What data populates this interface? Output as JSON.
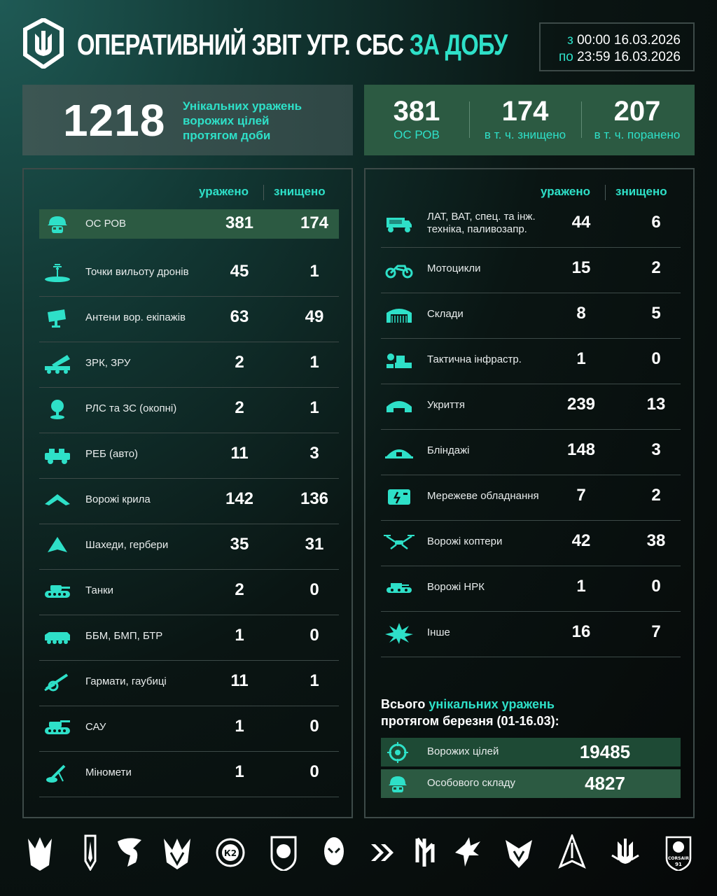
{
  "header": {
    "title_main": "ОПЕРАТИВНИЙ ЗВІТ УГР. СБС ",
    "title_accent": "ЗА ДОБУ",
    "date_from_label": "з",
    "date_from_time": "00:00",
    "date_from_date": "16.03.2026",
    "date_to_label": "по",
    "date_to_time": "23:59",
    "date_to_date": "16.03.2026"
  },
  "summary": {
    "unique_hits": "1218",
    "unique_hits_desc": [
      "Унікальних уражень",
      "ворожих цілей",
      "протягом доби"
    ],
    "personnel": {
      "value": "381",
      "label": "ОС РОВ"
    },
    "killed": {
      "value": "174",
      "label": "в т. ч. знищено"
    },
    "wounded": {
      "value": "207",
      "label": "в т. ч. поранено"
    }
  },
  "columns": {
    "hit": "уражено",
    "destroyed": "знищено"
  },
  "left_rows": [
    {
      "icon": "soldier-helmet-icon",
      "label": "ОС РОВ",
      "hit": "381",
      "destroyed": "174"
    },
    {
      "icon": "drone-launch-point-icon",
      "label": "Точки вильоту дронів",
      "hit": "45",
      "destroyed": "1"
    },
    {
      "icon": "satellite-dish-icon",
      "label": "Антени вор. екіпажів",
      "hit": "63",
      "destroyed": "49"
    },
    {
      "icon": "missile-launcher-icon",
      "label": "ЗРК, ЗРУ",
      "hit": "2",
      "destroyed": "1"
    },
    {
      "icon": "radar-icon",
      "label": "РЛС та ЗС (окопні)",
      "hit": "2",
      "destroyed": "1"
    },
    {
      "icon": "ew-vehicle-icon",
      "label": "РЕБ (авто)",
      "hit": "11",
      "destroyed": "3"
    },
    {
      "icon": "fixed-wing-drone-icon",
      "label": "Ворожі крила",
      "hit": "142",
      "destroyed": "136"
    },
    {
      "icon": "shahed-drone-icon",
      "label": "Шахеди, гербери",
      "hit": "35",
      "destroyed": "31"
    },
    {
      "icon": "tank-icon",
      "label": "Танки",
      "hit": "2",
      "destroyed": "0"
    },
    {
      "icon": "apc-icon",
      "label": "ББМ, БМП, БТР",
      "hit": "1",
      "destroyed": "0"
    },
    {
      "icon": "howitzer-icon",
      "label": "Гармати, гаубиці",
      "hit": "11",
      "destroyed": "1"
    },
    {
      "icon": "self-propelled-gun-icon",
      "label": "САУ",
      "hit": "1",
      "destroyed": "0"
    },
    {
      "icon": "mortar-icon",
      "label": "Міномети",
      "hit": "1",
      "destroyed": "0"
    }
  ],
  "right_rows": [
    {
      "icon": "truck-icon",
      "label": "ЛАТ, ВАТ, спец. та інж. техніка, паливозапр.",
      "hit": "44",
      "destroyed": "6"
    },
    {
      "icon": "motorcycle-icon",
      "label": "Мотоцикли",
      "hit": "15",
      "destroyed": "2"
    },
    {
      "icon": "warehouse-icon",
      "label": "Склади",
      "hit": "8",
      "destroyed": "5"
    },
    {
      "icon": "tactical-infrastructure-icon",
      "label": "Тактична інфрастр.",
      "hit": "1",
      "destroyed": "0"
    },
    {
      "icon": "shelter-icon",
      "label": "Укриття",
      "hit": "239",
      "destroyed": "13"
    },
    {
      "icon": "dugout-icon",
      "label": "Бліндажі",
      "hit": "148",
      "destroyed": "3"
    },
    {
      "icon": "network-equipment-icon",
      "label": "Мережеве обладнання",
      "hit": "7",
      "destroyed": "2"
    },
    {
      "icon": "quadcopter-icon",
      "label": "Ворожі коптери",
      "hit": "42",
      "destroyed": "38"
    },
    {
      "icon": "ground-robot-icon",
      "label": "Ворожі НРК",
      "hit": "1",
      "destroyed": "0"
    },
    {
      "icon": "explosion-icon",
      "label": "Інше",
      "hit": "16",
      "destroyed": "7"
    }
  ],
  "totals": {
    "title_prefix": "Всього ",
    "title_accent": "унікальних уражень",
    "title_line2": "протягом березня (01-16.03):",
    "targets": {
      "icon": "target-icon",
      "label": "Ворожих цілей",
      "value": "19485"
    },
    "personnel": {
      "icon": "soldier-helmet-icon",
      "label": "Особового складу",
      "value": "4827"
    }
  },
  "footer_emblems": [
    "trident-wings-emblem-icon",
    "sword-emblem-icon",
    "bird-emblem-icon",
    "wings-emblem-icon",
    "k2-emblem-icon",
    "shield-emblem-icon",
    "alien-emblem-icon",
    "chevron-emblem-icon",
    "rune-emblem-icon",
    "eagle-emblem-icon",
    "bat-emblem-icon",
    "arrow-emblem-icon",
    "trident-emblem-icon",
    "corsair-91-emblem-icon"
  ],
  "footer_emblem_text": {
    "corsair": "CORSAIR",
    "corsair_num": "91"
  },
  "colors": {
    "accent": "#2ee0c8",
    "highlight_green": "#2c5a42",
    "summary_grey": "#3c5653"
  }
}
